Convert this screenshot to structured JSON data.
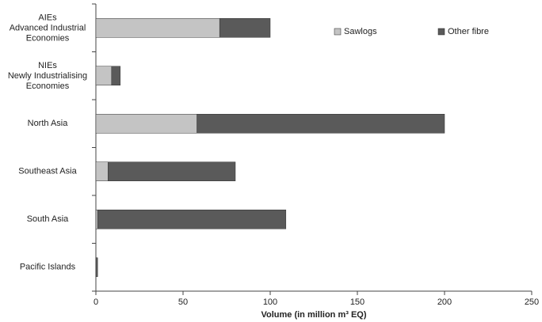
{
  "chart_data": {
    "type": "hbar_stacked",
    "categories": [
      "AIEs\nAdvanced Industrial\nEconomies",
      "NIEs\nNewly Industrialising\nEconomies",
      "North Asia",
      "Southeast Asia",
      "South Asia",
      "Pacific Islands"
    ],
    "series": [
      {
        "name": "Sawlogs",
        "color": "#c4c4c4",
        "values": [
          71,
          9,
          58,
          7,
          1,
          0
        ]
      },
      {
        "name": "Other fibre",
        "color": "#5a5a5a",
        "values": [
          29,
          5,
          142,
          73,
          108,
          1
        ]
      }
    ],
    "xlim": [
      0,
      250
    ],
    "xticks": [
      0,
      50,
      100,
      150,
      200,
      250
    ],
    "xlabel": "Volume (in million m³ EQ)",
    "legend": "top-right"
  }
}
